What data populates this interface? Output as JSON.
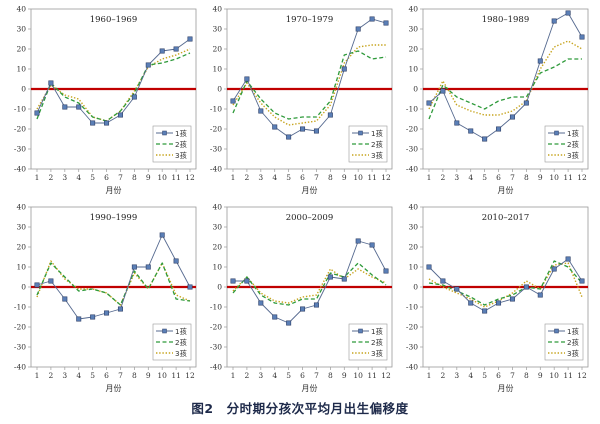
{
  "caption": "图2　分时期分孩次平均月出生偏移度",
  "colors": {
    "series1": "#55698f",
    "series2": "#2e9a3a",
    "series3": "#c6a31c",
    "zero_line": "#c00000",
    "marker_fill": "#5b7fb6",
    "marker_edge": "#2c3e66"
  },
  "chart_data": [
    {
      "type": "line",
      "title": "1960–1969",
      "xlabel": "月份",
      "x": [
        1,
        2,
        3,
        4,
        5,
        6,
        7,
        8,
        9,
        10,
        11,
        12
      ],
      "xticks": [
        "1",
        "2",
        "3",
        "4",
        "5",
        "6",
        "7",
        "8",
        "9",
        "10",
        "11",
        "12"
      ],
      "ylim": [
        -40,
        40
      ],
      "yticks": [
        "40",
        "30",
        "20",
        "10",
        "0",
        "-10",
        "-20",
        "-30",
        "-40"
      ],
      "legend": "bottom-right",
      "series": [
        {
          "name": "1孩",
          "values": [
            -12,
            3,
            -9,
            -9,
            -17,
            -17,
            -13,
            -4,
            12,
            19,
            20,
            25
          ]
        },
        {
          "name": "2孩",
          "values": [
            -15,
            3,
            -4,
            -7,
            -14,
            -16,
            -11,
            -2,
            12,
            13,
            15,
            18
          ]
        },
        {
          "name": "3孩",
          "values": [
            -10,
            2,
            -3,
            -5,
            -14,
            -16,
            -11,
            -1,
            11,
            15,
            17,
            20
          ]
        }
      ]
    },
    {
      "type": "line",
      "title": "1970–1979",
      "xlabel": "月份",
      "x": [
        1,
        2,
        3,
        4,
        5,
        6,
        7,
        8,
        9,
        10,
        11,
        12
      ],
      "xticks": [
        "1",
        "2",
        "3",
        "4",
        "5",
        "6",
        "7",
        "8",
        "9",
        "10",
        "11",
        "12"
      ],
      "ylim": [
        -40,
        40
      ],
      "yticks": [
        "40",
        "30",
        "20",
        "10",
        "0",
        "-10",
        "-20",
        "-30",
        "-40"
      ],
      "legend": "bottom-right",
      "series": [
        {
          "name": "1孩",
          "values": [
            -6,
            5,
            -11,
            -19,
            -24,
            -20,
            -21,
            -13,
            10,
            30,
            35,
            33
          ]
        },
        {
          "name": "2孩",
          "values": [
            -12,
            4,
            -5,
            -12,
            -15,
            -14,
            -14,
            -6,
            17,
            19,
            15,
            16
          ]
        },
        {
          "name": "3孩",
          "values": [
            -8,
            3,
            -7,
            -14,
            -18,
            -17,
            -16,
            -8,
            13,
            21,
            22,
            22
          ]
        }
      ]
    },
    {
      "type": "line",
      "title": "1980–1989",
      "xlabel": "月份",
      "x": [
        1,
        2,
        3,
        4,
        5,
        6,
        7,
        8,
        9,
        10,
        11,
        12
      ],
      "xticks": [
        "1",
        "2",
        "3",
        "4",
        "5",
        "6",
        "7",
        "8",
        "9",
        "10",
        "11",
        "12"
      ],
      "ylim": [
        -40,
        40
      ],
      "yticks": [
        "40",
        "30",
        "20",
        "10",
        "0",
        "-10",
        "-20",
        "-30",
        "-40"
      ],
      "legend": "bottom-right",
      "series": [
        {
          "name": "1孩",
          "values": [
            -7,
            -1,
            -17,
            -21,
            -25,
            -20,
            -14,
            -7,
            14,
            34,
            38,
            26
          ]
        },
        {
          "name": "2孩",
          "values": [
            -15,
            2,
            -4,
            -7,
            -10,
            -6,
            -4,
            -4,
            8,
            11,
            15,
            15
          ]
        },
        {
          "name": "3孩",
          "values": [
            -10,
            4,
            -8,
            -11,
            -13,
            -13,
            -11,
            -6,
            10,
            21,
            24,
            20
          ]
        }
      ]
    },
    {
      "type": "line",
      "title": "1990–1999",
      "xlabel": "月份",
      "x": [
        1,
        2,
        3,
        4,
        5,
        6,
        7,
        8,
        9,
        10,
        11,
        12
      ],
      "xticks": [
        "1",
        "2",
        "3",
        "4",
        "5",
        "6",
        "7",
        "8",
        "9",
        "10",
        "11",
        "12"
      ],
      "ylim": [
        -40,
        40
      ],
      "yticks": [
        "40",
        "30",
        "20",
        "10",
        "0",
        "-10",
        "-20",
        "-30",
        "-40"
      ],
      "legend": "bottom-right",
      "series": [
        {
          "name": "1孩",
          "values": [
            1,
            3,
            -6,
            -16,
            -15,
            -13,
            -11,
            10,
            10,
            26,
            13,
            0
          ]
        },
        {
          "name": "2孩",
          "values": [
            -4,
            12,
            5,
            -2,
            -1,
            -3,
            -9,
            8,
            -1,
            12,
            -6,
            -7
          ]
        },
        {
          "name": "3孩",
          "values": [
            -5,
            13,
            4,
            -1,
            -1,
            -3,
            -9,
            7,
            -1,
            12,
            -4,
            -7
          ]
        }
      ]
    },
    {
      "type": "line",
      "title": "2000–2009",
      "xlabel": "月份",
      "x": [
        1,
        2,
        3,
        4,
        5,
        6,
        7,
        8,
        9,
        10,
        11,
        12
      ],
      "xticks": [
        "1",
        "2",
        "3",
        "4",
        "5",
        "6",
        "7",
        "8",
        "9",
        "10",
        "11",
        "12"
      ],
      "ylim": [
        -40,
        40
      ],
      "yticks": [
        "40",
        "30",
        "20",
        "10",
        "0",
        "-10",
        "-20",
        "-30",
        "-40"
      ],
      "legend": "bottom-right",
      "series": [
        {
          "name": "1孩",
          "values": [
            3,
            3,
            -8,
            -15,
            -18,
            -11,
            -9,
            5,
            4,
            23,
            21,
            8
          ]
        },
        {
          "name": "2孩",
          "values": [
            -3,
            5,
            -4,
            -8,
            -9,
            -6,
            -6,
            7,
            5,
            12,
            6,
            1
          ]
        },
        {
          "name": "3孩",
          "values": [
            -2,
            5,
            -3,
            -7,
            -8,
            -5,
            -4,
            9,
            4,
            9,
            5,
            2
          ]
        }
      ]
    },
    {
      "type": "line",
      "title": "2010–2017",
      "xlabel": "月份",
      "x": [
        1,
        2,
        3,
        4,
        5,
        6,
        7,
        8,
        9,
        10,
        11,
        12
      ],
      "xticks": [
        "1",
        "2",
        "3",
        "4",
        "5",
        "6",
        "7",
        "8",
        "9",
        "10",
        "11",
        "12"
      ],
      "ylim": [
        -40,
        40
      ],
      "yticks": [
        "40",
        "30",
        "20",
        "10",
        "0",
        "-10",
        "-20",
        "-30",
        "-40"
      ],
      "legend": "bottom-right",
      "series": [
        {
          "name": "1孩",
          "values": [
            10,
            3,
            -1,
            -8,
            -12,
            -8,
            -6,
            0,
            -4,
            9,
            14,
            3
          ]
        },
        {
          "name": "2孩",
          "values": [
            2,
            1,
            -2,
            -5,
            -9,
            -6,
            -4,
            0,
            -1,
            13,
            10,
            2
          ]
        },
        {
          "name": "3孩",
          "values": [
            4,
            0,
            -3,
            -6,
            -10,
            -7,
            -3,
            3,
            -1,
            11,
            12,
            -5
          ]
        }
      ]
    }
  ]
}
